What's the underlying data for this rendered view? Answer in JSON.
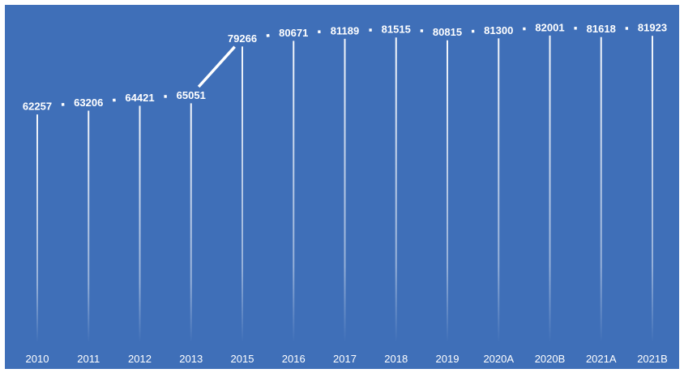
{
  "colors": {
    "background": "#3f6fb8",
    "line": "#ffffff",
    "text": "#ffffff"
  },
  "chart_data": {
    "type": "line",
    "title": "",
    "xlabel": "",
    "ylabel": "",
    "ylim": [
      0,
      100000
    ],
    "grid": false,
    "legend": "none",
    "categories": [
      "2010",
      "2011",
      "2012",
      "2013",
      "2015",
      "2016",
      "2017",
      "2018",
      "2019",
      "2020A",
      "2020B",
      "2021A",
      "2021B"
    ],
    "series": [
      {
        "values": [
          62257,
          63206,
          64421,
          65051,
          79266,
          80671,
          81189,
          81515,
          80815,
          81300,
          82001,
          81618,
          81923
        ],
        "labels": [
          "62257",
          "63206",
          "64421",
          "65051",
          "79266",
          "80671",
          "81189",
          "81515",
          "80815",
          "81300",
          "82001",
          "81618",
          "81923"
        ]
      }
    ]
  }
}
